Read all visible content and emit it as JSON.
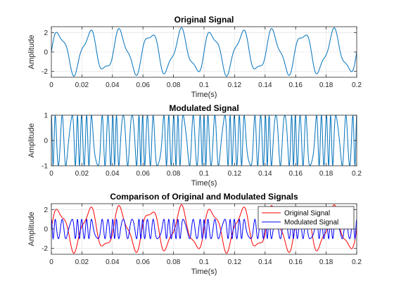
{
  "figure": {
    "background": "#ffffff"
  },
  "chart_data": [
    {
      "type": "line",
      "title": "Original Signal",
      "xlabel": "Time(s)",
      "ylabel": "Amplitude",
      "xlim": [
        0,
        0.2
      ],
      "ylim": [
        -2.6,
        2.6
      ],
      "xticks": [
        0,
        0.02,
        0.04,
        0.06,
        0.08,
        0.1,
        0.12,
        0.14,
        0.16,
        0.18,
        0.2
      ],
      "xticklabels": [
        "0",
        "0.02",
        "0.04",
        "0.06",
        "0.08",
        "0.1",
        "0.12",
        "0.14",
        "0.16",
        "0.18",
        "0.2"
      ],
      "yticks": [
        -2,
        0,
        2
      ],
      "yticklabels": [
        "-2",
        "0",
        "2"
      ],
      "grid": true,
      "series": [
        {
          "color": "#0072bd",
          "function": "2*sin(2*pi*50*t) + 0.5*sin(2*pi*120*t)",
          "t_range": [
            0,
            0.2
          ]
        }
      ]
    },
    {
      "type": "line",
      "title": "Modulated Signal",
      "xlabel": "Time(s)",
      "ylabel": "Amplitude",
      "xlim": [
        0,
        0.2
      ],
      "ylim": [
        -1,
        1
      ],
      "xticks": [
        0,
        0.02,
        0.04,
        0.06,
        0.08,
        0.1,
        0.12,
        0.14,
        0.16,
        0.18,
        0.2
      ],
      "xticklabels": [
        "0",
        "0.02",
        "0.04",
        "0.06",
        "0.08",
        "0.1",
        "0.12",
        "0.14",
        "0.16",
        "0.18",
        "0.2"
      ],
      "yticks": [
        -1,
        0,
        1
      ],
      "yticklabels": [
        "-1",
        "0",
        "1"
      ],
      "grid": true,
      "series": [
        {
          "color": "#0072bd",
          "function": "cos(2*pi*250*t + 1.2*original(t))",
          "t_range": [
            0,
            0.2
          ]
        }
      ]
    },
    {
      "type": "line",
      "title": "Comparison of Original and Modulated Signals",
      "xlabel": "Time(s)",
      "ylabel": "Amplitude",
      "xlim": [
        0,
        0.2
      ],
      "ylim": [
        -2.6,
        2.6
      ],
      "xticks": [
        0,
        0.02,
        0.04,
        0.06,
        0.08,
        0.1,
        0.12,
        0.14,
        0.16,
        0.18,
        0.2
      ],
      "xticklabels": [
        "0",
        "0.02",
        "0.04",
        "0.06",
        "0.08",
        "0.1",
        "0.12",
        "0.14",
        "0.16",
        "0.18",
        "0.2"
      ],
      "yticks": [
        -2,
        0,
        2
      ],
      "yticklabels": [
        "-2",
        "0",
        "2"
      ],
      "grid": true,
      "legend": {
        "placement": "top-right"
      },
      "series": [
        {
          "name": "Original Signal",
          "color": "#ff0000",
          "function": "2*sin(2*pi*50*t) + 0.5*sin(2*pi*120*t)",
          "t_range": [
            0,
            0.2
          ]
        },
        {
          "name": "Modulated Signal",
          "color": "#0000ff",
          "function": "cos(2*pi*250*t + 1.2*original(t))",
          "t_range": [
            0,
            0.2
          ]
        }
      ]
    }
  ]
}
